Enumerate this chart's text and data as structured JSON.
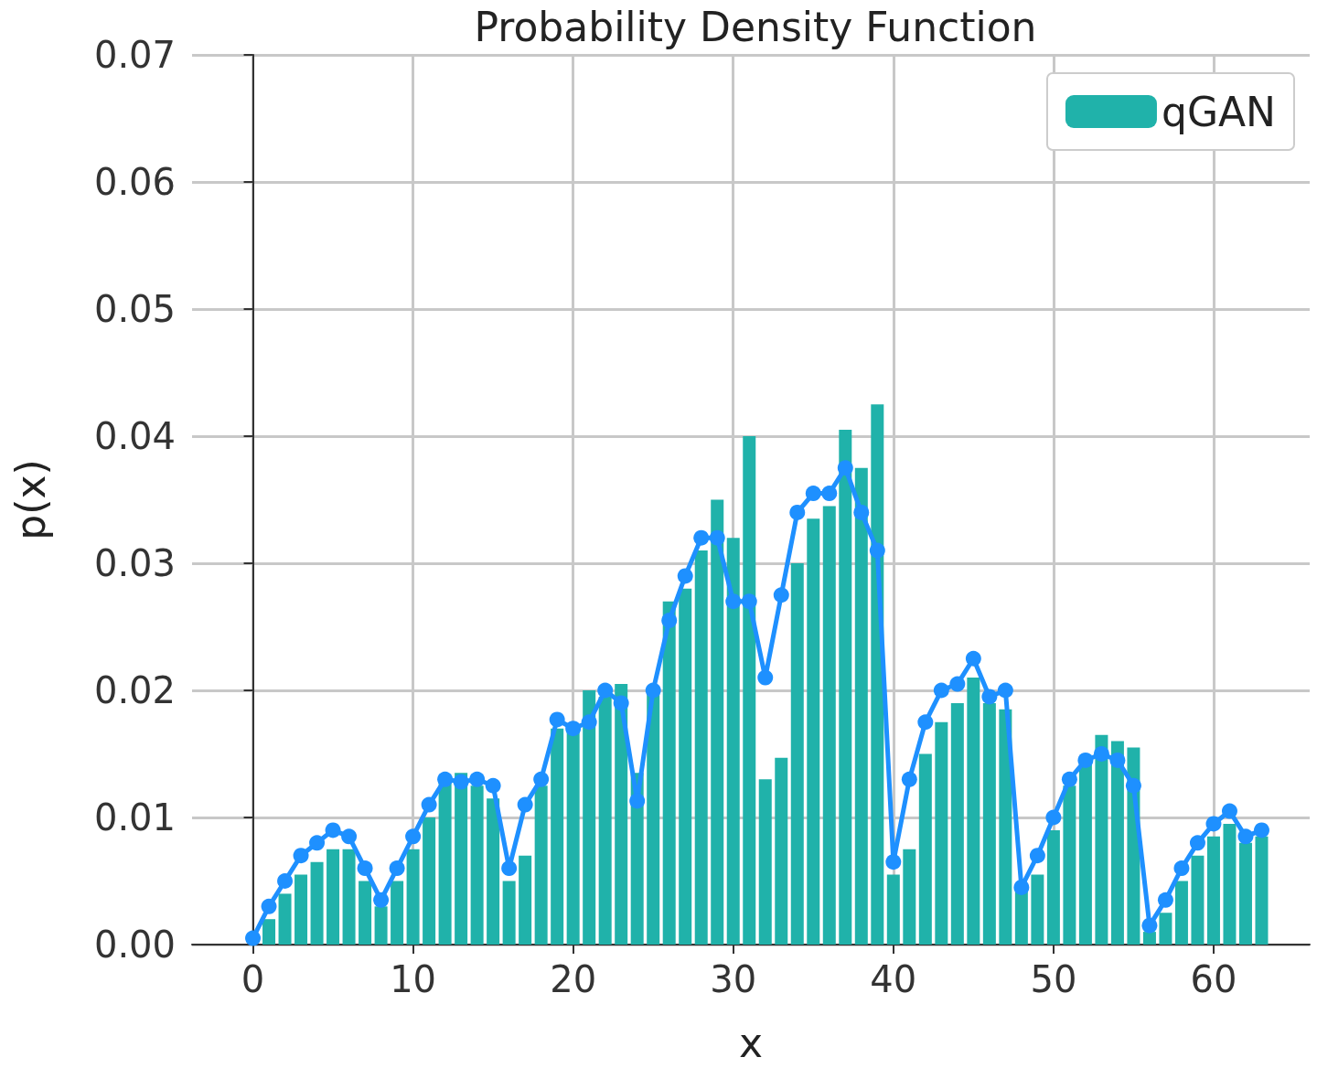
{
  "chart_data": {
    "type": "bar",
    "title": "Probability Density Function",
    "xlabel": "x",
    "ylabel": "p(x)",
    "x": [
      0,
      1,
      2,
      3,
      4,
      5,
      6,
      7,
      8,
      9,
      10,
      11,
      12,
      13,
      14,
      15,
      16,
      17,
      18,
      19,
      20,
      21,
      22,
      23,
      24,
      25,
      26,
      27,
      28,
      29,
      30,
      31,
      32,
      33,
      34,
      35,
      36,
      37,
      38,
      39,
      40,
      41,
      42,
      43,
      44,
      45,
      46,
      47,
      48,
      49,
      50,
      51,
      52,
      53,
      54,
      55,
      56,
      57,
      58,
      59,
      60,
      61,
      62,
      63
    ],
    "series": [
      {
        "name": "qGAN",
        "color": "#20b2aa",
        "values": [
          null,
          0.002,
          0.004,
          0.0055,
          0.0065,
          0.0075,
          0.0075,
          0.005,
          0.003,
          0.005,
          0.0075,
          0.01,
          0.013,
          0.0135,
          0.0125,
          0.0115,
          0.005,
          0.007,
          0.0125,
          0.017,
          0.017,
          0.02,
          0.0195,
          0.0205,
          0.0135,
          0.02,
          0.027,
          0.028,
          0.031,
          0.035,
          0.032,
          0.04,
          0.013,
          0.0147,
          0.03,
          0.0335,
          0.0345,
          0.0405,
          0.0375,
          0.0425,
          0.0055,
          0.0075,
          0.015,
          0.0175,
          0.019,
          0.021,
          0.019,
          0.0185,
          0.0045,
          0.0055,
          0.009,
          0.0125,
          0.0145,
          0.0165,
          0.016,
          0.0155,
          0.001,
          0.0025,
          0.005,
          0.007,
          0.0085,
          0.0095,
          0.008,
          0.0085
        ]
      },
      {
        "type": "line",
        "color": "#1e90ff",
        "values": [
          0.0005,
          0.003,
          0.005,
          0.007,
          0.008,
          0.009,
          0.0085,
          0.006,
          0.0035,
          0.006,
          0.0085,
          0.011,
          0.013,
          0.0128,
          0.013,
          0.0125,
          0.006,
          0.011,
          0.013,
          0.0177,
          0.017,
          0.0175,
          0.02,
          0.019,
          0.0113,
          0.02,
          0.0255,
          0.029,
          0.032,
          0.032,
          0.027,
          0.027,
          0.021,
          0.0275,
          0.034,
          0.0355,
          0.0355,
          0.0375,
          0.034,
          0.031,
          0.0065,
          0.013,
          0.0175,
          0.02,
          0.0205,
          0.0225,
          0.0195,
          0.02,
          0.0045,
          0.007,
          0.01,
          0.013,
          0.0145,
          0.015,
          0.0145,
          0.0125,
          0.0015,
          0.0035,
          0.006,
          0.008,
          0.0095,
          0.0105,
          0.0085,
          0.009
        ]
      }
    ],
    "xlim": [
      -3.8,
      66
    ],
    "xticks": [
      0,
      10,
      20,
      30,
      40,
      50,
      60
    ],
    "ylim": [
      0,
      0.07
    ],
    "yticks": [
      {
        "value": 0,
        "label": "0.00"
      },
      {
        "value": 0.01,
        "label": "0.01"
      },
      {
        "value": 0.02,
        "label": "0.02"
      },
      {
        "value": 0.03,
        "label": "0.03"
      },
      {
        "value": 0.04,
        "label": "0.04"
      },
      {
        "value": 0.05,
        "label": "0.05"
      },
      {
        "value": 0.06,
        "label": "0.06"
      },
      {
        "value": 0.07,
        "label": "0.07"
      }
    ],
    "grid": true,
    "legend": "top right",
    "marker": "circle",
    "line_style": "solid"
  }
}
